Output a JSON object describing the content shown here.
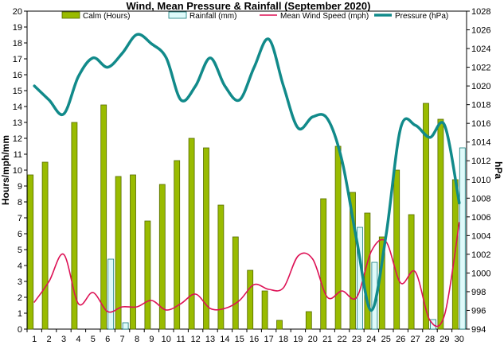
{
  "chart_data": {
    "type": "bar",
    "title": "Wind, Mean Pressure & Rainfall (September 2020)",
    "ylabel": "Hours/mph/mm",
    "y2label": "hPa",
    "x": [
      1,
      2,
      3,
      4,
      5,
      6,
      7,
      8,
      9,
      10,
      11,
      12,
      13,
      14,
      15,
      16,
      17,
      18,
      19,
      20,
      21,
      22,
      23,
      24,
      25,
      26,
      27,
      28,
      29,
      30
    ],
    "ylim": [
      0,
      20
    ],
    "y_ticks": [
      0,
      1,
      2,
      3,
      4,
      5,
      6,
      7,
      8,
      9,
      10,
      11,
      12,
      13,
      14,
      15,
      16,
      17,
      18,
      19,
      20
    ],
    "y2lim": [
      994,
      1028
    ],
    "y2_ticks": [
      994,
      996,
      998,
      1000,
      1002,
      1004,
      1006,
      1008,
      1010,
      1012,
      1014,
      1016,
      1018,
      1020,
      1022,
      1024,
      1026,
      1028
    ],
    "legend_position": "top",
    "series": [
      {
        "name": "Calm (Hours)",
        "kind": "bar",
        "axis": "left",
        "color": "#99bb00",
        "values": [
          9.7,
          10.5,
          0,
          13.0,
          0,
          14.1,
          9.6,
          9.7,
          6.8,
          9.1,
          10.6,
          12.0,
          11.4,
          7.8,
          5.8,
          3.7,
          2.4,
          0.55,
          0,
          1.1,
          8.2,
          11.5,
          8.6,
          7.3,
          5.8,
          10.0,
          7.2,
          14.2,
          13.2,
          9.4
        ]
      },
      {
        "name": "Rainfall (mm)",
        "kind": "bar",
        "axis": "left",
        "color": "#dffafa",
        "values": [
          0,
          0,
          0,
          0,
          0,
          4.4,
          0.4,
          0,
          0,
          0,
          0,
          0,
          0,
          0,
          0,
          0,
          0,
          0,
          0,
          0,
          0,
          0,
          6.4,
          4.2,
          0,
          0,
          0,
          0.6,
          0,
          11.4
        ]
      },
      {
        "name": "Mean Wind Speed (mph)",
        "kind": "line",
        "axis": "left",
        "color": "#dd1155",
        "values": [
          1.7,
          3.0,
          4.7,
          1.6,
          2.3,
          1.1,
          1.4,
          1.4,
          1.8,
          1.2,
          1.6,
          2.2,
          1.3,
          1.3,
          1.8,
          2.8,
          2.5,
          2.6,
          4.6,
          4.4,
          2.0,
          2.4,
          2.0,
          4.9,
          5.5,
          2.9,
          3.6,
          0.55,
          0.9,
          6.7
        ]
      },
      {
        "name": "Pressure (hPa)",
        "kind": "line",
        "axis": "right",
        "color": "#118a8a",
        "values": [
          1020.0,
          1018.5,
          1017.0,
          1021.0,
          1023.0,
          1022.0,
          1023.5,
          1025.5,
          1024.5,
          1023.0,
          1018.5,
          1020.0,
          1023.0,
          1020.0,
          1018.5,
          1022.0,
          1025.0,
          1020.0,
          1015.5,
          1016.7,
          1016.5,
          1012.0,
          1003.5,
          996.0,
          1004.0,
          1015.5,
          1015.8,
          1014.5,
          1015.8,
          1007.5
        ]
      }
    ]
  }
}
